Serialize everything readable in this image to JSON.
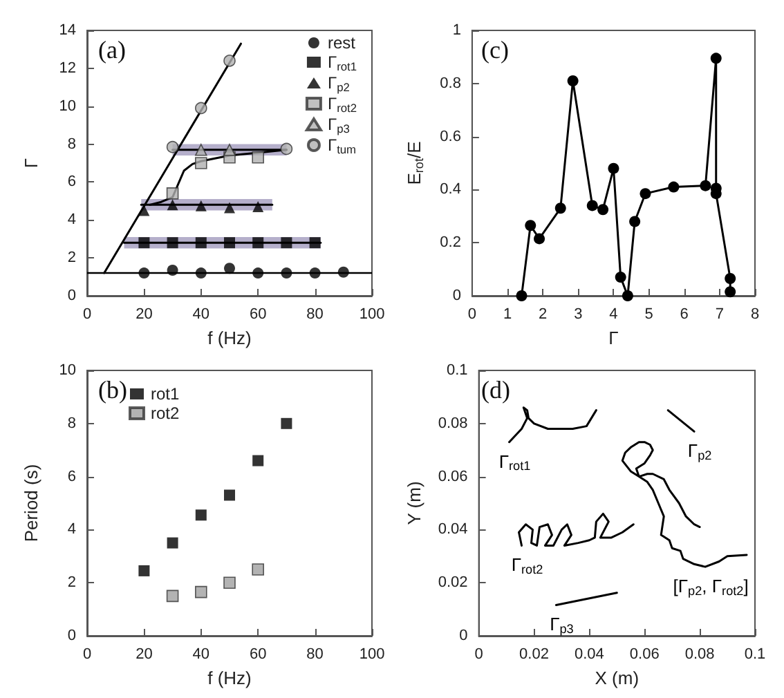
{
  "chart_data": [
    {
      "type": "scatter",
      "title": "(a)",
      "xlabel": "f (Hz)",
      "ylabel": "Γ",
      "xlim": [
        0,
        100
      ],
      "xticks": [
        0,
        20,
        40,
        60,
        80,
        100
      ],
      "ylim": [
        0,
        14
      ],
      "yticks": [
        0,
        2,
        4,
        6,
        8,
        10,
        12,
        14
      ],
      "legend": "top right",
      "ref_lines": [
        {
          "axis": "y",
          "value": 1.25,
          "color": "#000000"
        }
      ],
      "series": [
        {
          "type": "line",
          "marker": "none",
          "color": "#000000",
          "x": [
            13,
            82
          ],
          "values": [
            2.8,
            2.8
          ],
          "lower": [
            2.5,
            2.5
          ],
          "upper": [
            3.1,
            3.1
          ]
        },
        {
          "type": "line",
          "marker": "none",
          "color": "#000000",
          "x": [
            19,
            65
          ],
          "values": [
            4.8,
            4.8
          ],
          "lower": [
            4.5,
            4.5
          ],
          "upper": [
            5.1,
            5.1
          ]
        },
        {
          "type": "line",
          "marker": "none",
          "color": "#000000",
          "x": [
            30,
            70
          ],
          "values": [
            7.7,
            7.7
          ],
          "lower": [
            7.4,
            7.4
          ],
          "upper": [
            8.0,
            8.0
          ]
        },
        {
          "type": "line",
          "marker": "none",
          "color": "#000000",
          "x": [
            6,
            54
          ],
          "values": [
            1.2,
            13.3
          ]
        },
        {
          "type": "line",
          "marker": "none",
          "color": "#000000",
          "x": [
            22,
            26,
            30,
            32,
            34,
            37,
            40,
            50,
            60,
            70
          ],
          "values": [
            4.8,
            4.95,
            5.2,
            5.9,
            6.6,
            6.95,
            7.1,
            7.4,
            7.55,
            7.7
          ]
        },
        {
          "name": "rest",
          "marker": "circle",
          "color": "#000000",
          "x": [
            20,
            30,
            40,
            50,
            60,
            70,
            80,
            90
          ],
          "values": [
            1.2,
            1.35,
            1.2,
            1.45,
            1.2,
            1.2,
            1.2,
            1.25
          ]
        },
        {
          "name": "Γ$_{rot1}$",
          "marker": "square",
          "color": "#000000",
          "x": [
            20,
            30,
            40,
            50,
            60,
            70,
            80
          ],
          "values": [
            2.8,
            2.8,
            2.8,
            2.8,
            2.8,
            2.8,
            2.8
          ]
        },
        {
          "name": "Γ$_{p2}$",
          "marker": "triangle",
          "color": "#000000",
          "x": [
            20,
            30,
            40,
            50,
            60
          ],
          "values": [
            4.5,
            4.8,
            4.75,
            4.65,
            4.7
          ]
        },
        {
          "name": "Γ$_{rot2}$",
          "marker": "square",
          "color": "#b0b0b0",
          "x": [
            30,
            40,
            50,
            60
          ],
          "values": [
            5.4,
            7.0,
            7.3,
            7.3
          ]
        },
        {
          "name": "Γ$_{p3}$",
          "marker": "triangle",
          "color": "#b0b0b0",
          "x": [
            40,
            50
          ],
          "values": [
            7.7,
            7.7
          ]
        },
        {
          "name": "Γ$_{tum}$",
          "marker": "circle",
          "color": "#b0b0b0",
          "x": [
            30,
            40,
            50,
            70
          ],
          "values": [
            7.85,
            9.9,
            12.4,
            7.75
          ]
        }
      ]
    },
    {
      "type": "line",
      "title": "(c)",
      "xlabel": "Γ",
      "ylabel": "E$_{rot}$/E",
      "xlim": [
        0,
        8
      ],
      "xticks": [
        0,
        1,
        2,
        3,
        4,
        5,
        6,
        7,
        8
      ],
      "ylim": [
        0,
        1
      ],
      "yticks": [
        0,
        0.2,
        0.4,
        0.6,
        0.8,
        1
      ],
      "marker": "circle",
      "series": [
        {
          "color": "#000000",
          "x": [
            1.4,
            1.65,
            1.9,
            2.5,
            2.85,
            3.4,
            3.7,
            4.0,
            4.2,
            4.4,
            4.6,
            4.9,
            5.7,
            6.6,
            6.9,
            6.9,
            6.9,
            7.3,
            7.3
          ],
          "values": [
            0,
            0.265,
            0.215,
            0.33,
            0.81,
            0.34,
            0.325,
            0.48,
            0.07,
            0,
            0.28,
            0.385,
            0.41,
            0.415,
            0.895,
            0.405,
            0.385,
            0.065,
            0.015
          ]
        }
      ]
    },
    {
      "type": "scatter",
      "title": "(b)",
      "xlabel": "f (Hz)",
      "ylabel": "Period (s)",
      "xlim": [
        0,
        100
      ],
      "xticks": [
        0,
        20,
        40,
        60,
        80,
        100
      ],
      "ylim": [
        0,
        10
      ],
      "yticks": [
        0,
        2,
        4,
        6,
        8,
        10
      ],
      "legend": "top left",
      "marker": "square",
      "series": [
        {
          "name": "rot1",
          "color": "#000000",
          "x": [
            20,
            30,
            40,
            50,
            60,
            70
          ],
          "values": [
            2.45,
            3.5,
            4.55,
            5.3,
            6.6,
            8.0
          ]
        },
        {
          "name": "rot2",
          "color": "#a0a0a0",
          "x": [
            30,
            40,
            50,
            60
          ],
          "values": [
            1.5,
            1.65,
            2.0,
            2.5
          ]
        }
      ]
    },
    {
      "type": "line",
      "title": "(d)",
      "xlabel": "X (m)",
      "ylabel": "Y (m)",
      "xlim": [
        0,
        0.1
      ],
      "xticks": [
        0,
        0.02,
        0.04,
        0.06,
        0.08,
        0.1
      ],
      "ylim": [
        0,
        0.1
      ],
      "yticks": [
        0,
        0.02,
        0.04,
        0.06,
        0.08,
        0.1
      ],
      "marker": "none",
      "series": [
        {
          "name": "Γ$_{rot1}$",
          "color": "#000000",
          "x": [
            0.011,
            0.0155,
            0.0175,
            0.0162,
            0.0175,
            0.018,
            0.02,
            0.025,
            0.034,
            0.039,
            0.0425
          ],
          "values": [
            0.073,
            0.078,
            0.082,
            0.086,
            0.085,
            0.082,
            0.08,
            0.078,
            0.078,
            0.079,
            0.085
          ]
        },
        {
          "name": "Γ$_{p2}$",
          "color": "#000000",
          "x": [
            0.0685,
            0.078
          ],
          "values": [
            0.085,
            0.077
          ]
        },
        {
          "name": "Γ$_{p3}$",
          "color": "#000000",
          "x": [
            0.028,
            0.05
          ],
          "values": [
            0.0116,
            0.0162
          ]
        },
        {
          "name": "Γ$_{rot2}$",
          "color": "#000000",
          "x": [
            0.0155,
            0.0145,
            0.017,
            0.0195,
            0.019,
            0.021,
            0.022,
            0.025,
            0.0265,
            0.024,
            0.027,
            0.03,
            0.032,
            0.0335,
            0.031,
            0.036,
            0.04,
            0.042,
            0.0425,
            0.045,
            0.047,
            0.044,
            0.048,
            0.052,
            0.056
          ],
          "values": [
            0.034,
            0.039,
            0.042,
            0.04,
            0.035,
            0.034,
            0.041,
            0.042,
            0.038,
            0.034,
            0.034,
            0.04,
            0.042,
            0.038,
            0.034,
            0.035,
            0.036,
            0.037,
            0.043,
            0.046,
            0.043,
            0.037,
            0.037,
            0.039,
            0.042
          ]
        },
        {
          "name": "[Γ$_{p2}$, Γ$_{rot2}$]",
          "color": "#000000",
          "x": [
            0.097,
            0.09,
            0.087,
            0.082,
            0.078,
            0.074,
            0.073,
            0.07,
            0.069,
            0.066,
            0.067,
            0.065,
            0.063,
            0.061,
            0.058,
            0.055,
            0.052,
            0.053,
            0.055,
            0.058,
            0.06,
            0.062,
            0.063,
            0.062,
            0.06,
            0.057,
            0.058,
            0.061,
            0.063,
            0.067,
            0.069,
            0.0725,
            0.075,
            0.078,
            0.08
          ],
          "values": [
            0.0305,
            0.03,
            0.028,
            0.026,
            0.027,
            0.029,
            0.032,
            0.033,
            0.036,
            0.038,
            0.045,
            0.05,
            0.055,
            0.058,
            0.06,
            0.062,
            0.066,
            0.069,
            0.071,
            0.073,
            0.073,
            0.072,
            0.07,
            0.068,
            0.065,
            0.063,
            0.06,
            0.061,
            0.061,
            0.059,
            0.055,
            0.05,
            0.045,
            0.042,
            0.041
          ]
        }
      ]
    }
  ]
}
